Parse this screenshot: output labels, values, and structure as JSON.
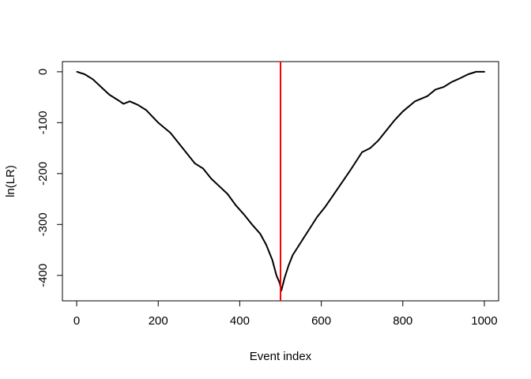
{
  "chart_data": {
    "type": "line",
    "title": "",
    "xlabel": "Event index",
    "ylabel": "ln(LR)",
    "xlim": [
      -35,
      1035
    ],
    "ylim": [
      -450,
      20
    ],
    "x_ticks": [
      0,
      200,
      400,
      600,
      800,
      1000
    ],
    "y_ticks": [
      0,
      -100,
      -200,
      -300,
      -400
    ],
    "grid": false,
    "legend": "none",
    "series": [
      {
        "color": "#000000",
        "x": [
          1,
          20,
          40,
          60,
          80,
          100,
          115,
          130,
          150,
          170,
          200,
          230,
          260,
          290,
          310,
          330,
          350,
          370,
          390,
          410,
          430,
          450,
          465,
          480,
          490,
          498,
          502,
          510,
          520,
          530,
          550,
          570,
          590,
          610,
          640,
          670,
          700,
          720,
          740,
          760,
          780,
          800,
          830,
          860,
          880,
          900,
          920,
          940,
          960,
          980,
          1000
        ],
        "y": [
          0,
          -5,
          -15,
          -30,
          -45,
          -55,
          -63,
          -58,
          -65,
          -75,
          -100,
          -120,
          -150,
          -180,
          -190,
          -210,
          -225,
          -240,
          -262,
          -280,
          -300,
          -318,
          -340,
          -370,
          -400,
          -415,
          -430,
          -405,
          -380,
          -360,
          -335,
          -310,
          -285,
          -265,
          -230,
          -195,
          -158,
          -150,
          -135,
          -115,
          -95,
          -78,
          -58,
          -48,
          -35,
          -30,
          -20,
          -13,
          -5,
          0,
          0
        ]
      }
    ],
    "reference_line": {
      "x": 500,
      "color": "#ff0000"
    }
  }
}
